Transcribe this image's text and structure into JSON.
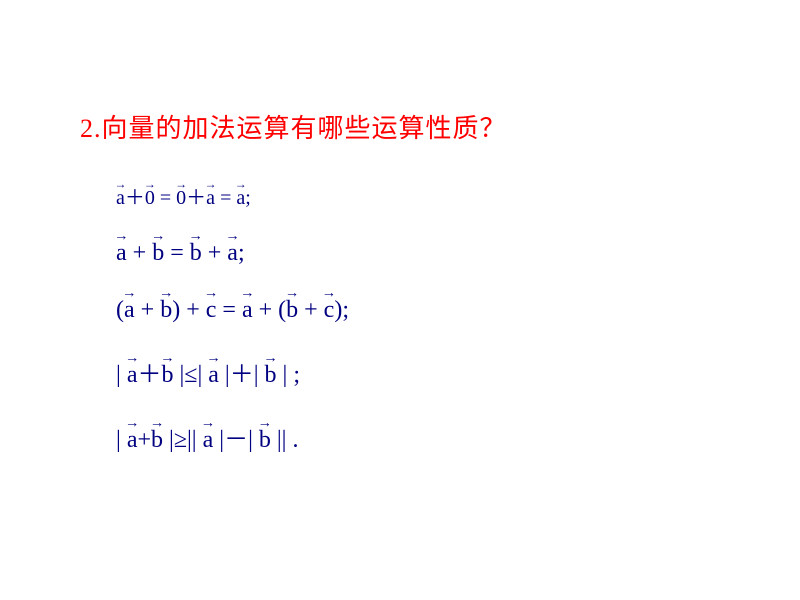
{
  "heading": {
    "number": "2.",
    "text": "向量的加法运算有哪些运算性质？"
  },
  "equations": {
    "eq1": {
      "parts": [
        "a",
        "＋",
        "0",
        " = ",
        "0",
        "＋",
        "a",
        " = ",
        "a",
        ";"
      ]
    },
    "eq2": {
      "parts": [
        "a",
        " + ",
        "b",
        "  = ",
        "b",
        " + ",
        "a",
        ";"
      ]
    },
    "eq3": {
      "parts": [
        "(",
        "a",
        " + ",
        "b",
        ") + ",
        "c",
        " = ",
        "a",
        "  + (",
        "b",
        " + ",
        "c",
        ");"
      ]
    },
    "eq4": {
      "parts": [
        "| ",
        "a",
        "＋",
        "b",
        " |≤| ",
        "a",
        " |＋| ",
        "b",
        " | ;"
      ]
    },
    "eq5": {
      "parts": [
        "| ",
        "a",
        "+",
        "b",
        " |≥|| ",
        "a",
        " |－| ",
        "b",
        " || ."
      ]
    }
  },
  "style": {
    "heading_color": "#ff0000",
    "equation_color": "#000080",
    "background": "#ffffff",
    "heading_fontsize": 26,
    "eq_fontsize_small": 20,
    "eq_fontsize_normal": 24
  }
}
